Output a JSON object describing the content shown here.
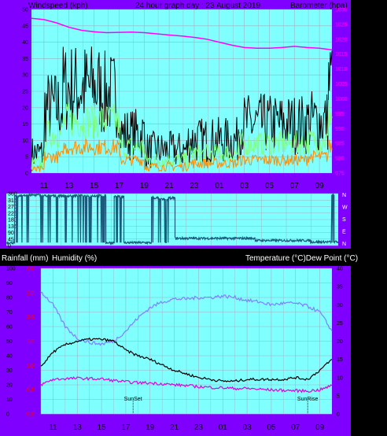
{
  "header": {
    "left": "Windspeed (kph)",
    "center": "24 hour graph day : 23 August 2019",
    "right": "Barometer (hpa)"
  },
  "humidity_header": {
    "rainfall": "Rainfall (mm)",
    "humidity": "Humidity (%)",
    "temperature": "Temperature (°C)Dew Point (°C)"
  },
  "colors": {
    "frame": "#8000ff",
    "plot_bg": "#80ffff",
    "grid": "#a0b0c0",
    "gust": "#000000",
    "wind_avg": "#80ff80",
    "wind_low": "#ff8c00",
    "barometer": "#ff00ff",
    "direction": "#1a5a7a",
    "humidity": "#8080ff",
    "temperature": "#000000",
    "dewpoint": "#e000e0",
    "left_tick": "#000000",
    "right_tick": "#ff00ff",
    "rain_tick": "#ff0000"
  },
  "chart_data": [
    {
      "type": "line",
      "name": "wind-barometer",
      "x_ticks": [
        "11",
        "13",
        "15",
        "17",
        "19",
        "21",
        "23",
        "01",
        "03",
        "05",
        "07",
        "09"
      ],
      "y_left_ticks": [
        "0",
        "5",
        "10",
        "15",
        "20",
        "25",
        "30",
        "35",
        "40",
        "45",
        "50"
      ],
      "y_left_range": [
        0,
        50
      ],
      "y_right_ticks": [
        "975",
        "980",
        "985",
        "990",
        "995",
        "1000",
        "1005",
        "1010",
        "1015",
        "1020",
        "1025",
        "1030"
      ],
      "y_right_range": [
        975,
        1030
      ],
      "x_range_hours": [
        0,
        24
      ],
      "windspeed_segments": [
        {
          "from_hour": 0.0,
          "to_hour": 1.0,
          "gust": 6,
          "avg": 3,
          "low": 1
        },
        {
          "from_hour": 1.0,
          "to_hour": 2.5,
          "gust": 20,
          "avg": 12,
          "low": 5
        },
        {
          "from_hour": 2.5,
          "to_hour": 5.5,
          "gust": 26,
          "avg": 16,
          "low": 8
        },
        {
          "from_hour": 5.5,
          "to_hour": 7.0,
          "gust": 24,
          "avg": 16,
          "low": 8
        },
        {
          "from_hour": 7.0,
          "to_hour": 9.0,
          "gust": 12,
          "avg": 8,
          "low": 4
        },
        {
          "from_hour": 9.0,
          "to_hour": 12.5,
          "gust": 7,
          "avg": 4,
          "low": 2
        },
        {
          "from_hour": 12.5,
          "to_hour": 16.5,
          "gust": 10,
          "avg": 6,
          "low": 3
        },
        {
          "from_hour": 16.5,
          "to_hour": 22.0,
          "gust": 15,
          "avg": 9,
          "low": 4
        },
        {
          "from_hour": 22.0,
          "to_hour": 23.7,
          "gust": 16,
          "avg": 10,
          "low": 5
        },
        {
          "from_hour": 23.7,
          "to_hour": 24.0,
          "gust": 28,
          "avg": 18,
          "low": 8
        }
      ],
      "barometer": {
        "x": [
          0,
          1,
          2,
          3,
          4,
          5,
          6,
          7,
          8,
          9,
          10,
          11,
          12,
          13,
          14,
          15,
          16,
          17,
          18,
          19,
          20,
          21,
          22,
          23,
          24
        ],
        "y": [
          1027,
          1026.6,
          1025.5,
          1024,
          1023,
          1022.5,
          1022.2,
          1022.3,
          1022.4,
          1022.2,
          1021.8,
          1021.4,
          1021.1,
          1020.6,
          1020,
          1019,
          1018,
          1017.2,
          1017,
          1017,
          1017.2,
          1017.6,
          1017.2,
          1017,
          1016.4
        ]
      }
    },
    {
      "type": "line",
      "name": "wind-direction",
      "right_labels": [
        "N",
        "W",
        "S",
        "E",
        "N"
      ],
      "y_ticks": [
        "0",
        "45",
        "90",
        "135",
        "180",
        "225",
        "270",
        "315",
        "360"
      ],
      "y_range": [
        0,
        360
      ],
      "x_range_hours": [
        0,
        24
      ],
      "segments": [
        {
          "from_hour": 0.0,
          "to_hour": 0.6,
          "value": 20
        },
        {
          "from_hour": 0.6,
          "to_hour": 1.0,
          "value": 340
        },
        {
          "from_hour": 1.0,
          "to_hour": 2.5,
          "value": 350
        },
        {
          "from_hour": 2.5,
          "to_hour": 7.2,
          "value": 345
        },
        {
          "from_hour": 7.2,
          "to_hour": 7.8,
          "value": 20
        },
        {
          "from_hour": 7.8,
          "to_hour": 8.5,
          "value": 340
        },
        {
          "from_hour": 8.5,
          "to_hour": 10.5,
          "value": 20
        },
        {
          "from_hour": 10.5,
          "to_hour": 11.0,
          "value": 330
        },
        {
          "from_hour": 11.0,
          "to_hour": 11.7,
          "value": 320
        },
        {
          "from_hour": 11.7,
          "to_hour": 12.2,
          "value": 330
        },
        {
          "from_hour": 12.2,
          "to_hour": 18.0,
          "value": 50
        },
        {
          "from_hour": 18.0,
          "to_hour": 22.0,
          "value": 35
        },
        {
          "from_hour": 22.0,
          "to_hour": 23.5,
          "value": 25
        },
        {
          "from_hour": 23.5,
          "to_hour": 23.7,
          "value": 350
        },
        {
          "from_hour": 23.7,
          "to_hour": 24.0,
          "value": 25
        }
      ]
    },
    {
      "type": "line",
      "name": "humidity-temperature",
      "x_ticks": [
        "11",
        "13",
        "15",
        "17",
        "19",
        "21",
        "23",
        "01",
        "03",
        "05",
        "07",
        "09"
      ],
      "humidity_ticks": [
        "0",
        "10",
        "20",
        "30",
        "40",
        "50",
        "60",
        "70",
        "80",
        "90",
        "100"
      ],
      "humidity_range": [
        0,
        100
      ],
      "rain_ticks": [
        "0.0",
        "0.5",
        "1.0",
        "1.5",
        "2.0",
        "2.5",
        "3.0"
      ],
      "temperature_ticks": [
        "0",
        "5",
        "10",
        "15",
        "20",
        "25",
        "30",
        "35",
        "40"
      ],
      "temperature_range": [
        0,
        40
      ],
      "annotations": [
        {
          "label": "SunSet",
          "hour": 7.6
        },
        {
          "label": "SunRise",
          "hour": 22.0
        }
      ],
      "humidity": {
        "x": [
          0,
          1,
          2,
          3,
          4,
          5,
          6,
          7,
          8,
          9,
          10,
          11,
          12,
          13,
          14,
          15,
          16,
          17,
          18,
          19,
          20,
          21,
          22,
          23,
          24
        ],
        "y": [
          84,
          75,
          60,
          52,
          49,
          48,
          50,
          57,
          66,
          73,
          77,
          79,
          79,
          80,
          80,
          81,
          80,
          78,
          77,
          75,
          76,
          76,
          74,
          70,
          57
        ]
      },
      "temperature": {
        "x": [
          0,
          1,
          2,
          3,
          4,
          5,
          6,
          7,
          8,
          9,
          10,
          11,
          12,
          13,
          14,
          15,
          16,
          17,
          18,
          19,
          20,
          21,
          22,
          23,
          24
        ],
        "y": [
          13,
          17,
          19,
          20,
          20.5,
          20.5,
          20,
          17.5,
          16,
          15,
          13.5,
          12,
          11,
          10,
          9.5,
          9,
          9,
          9.5,
          9.5,
          9.5,
          9.5,
          10,
          9.5,
          12,
          15
        ]
      },
      "dewpoint": {
        "x": [
          0,
          1,
          2,
          3,
          4,
          5,
          6,
          7,
          8,
          9,
          10,
          11,
          12,
          13,
          14,
          15,
          16,
          17,
          18,
          19,
          20,
          21,
          22,
          23,
          24
        ],
        "y": [
          8,
          9.5,
          9.7,
          9.8,
          9.7,
          9.6,
          9.2,
          8.8,
          8.6,
          8.5,
          8.3,
          8.0,
          7.8,
          7.5,
          7.3,
          7.2,
          7.0,
          7.0,
          6.8,
          6.6,
          6.5,
          6.4,
          6.3,
          6.6,
          7.8
        ]
      }
    }
  ]
}
